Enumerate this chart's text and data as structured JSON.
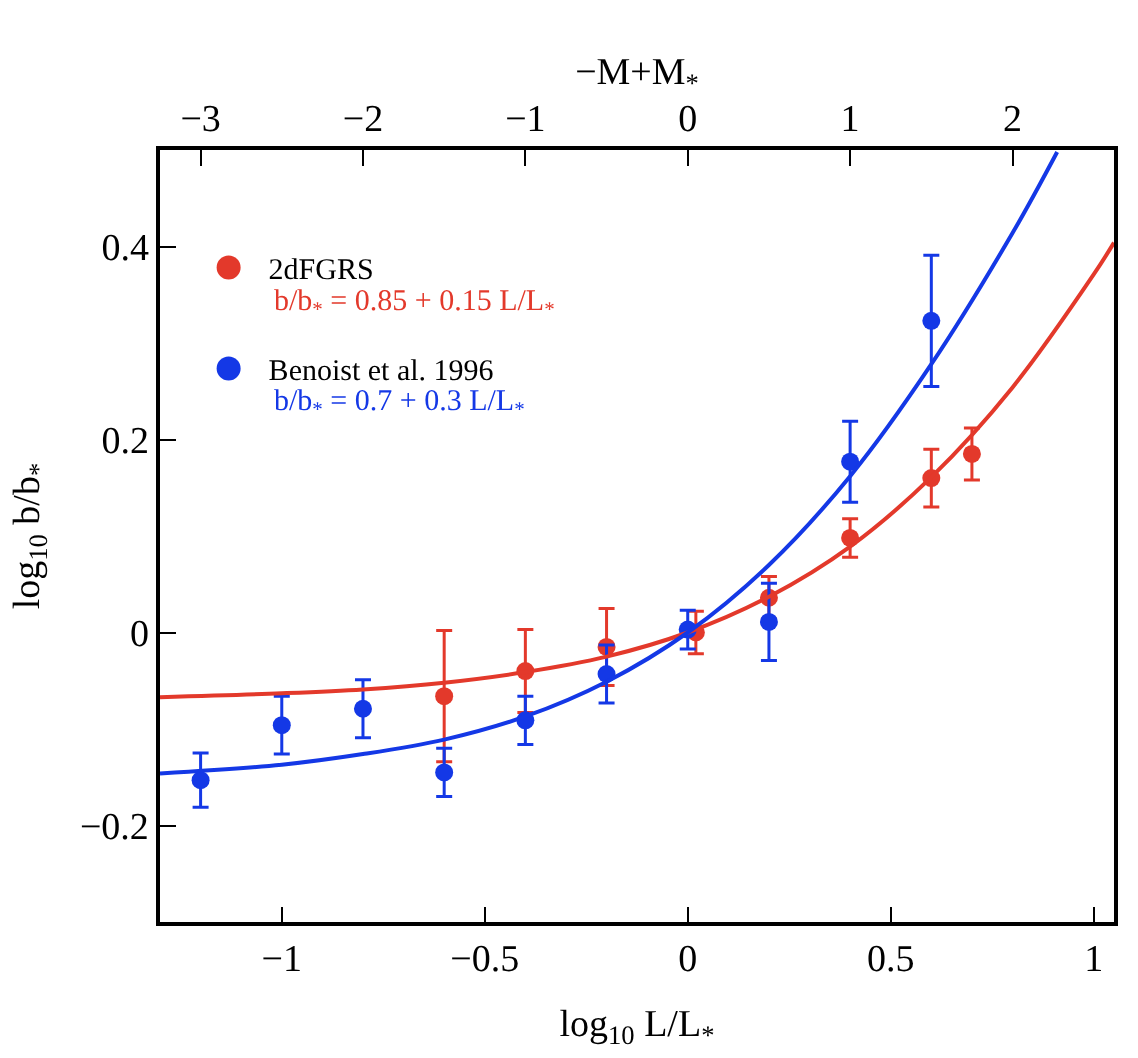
{
  "chart_data": {
    "type": "scatter",
    "xlabel": "log$_{10}$ L/L$_{*}$",
    "ylabel": "log$_{10}$ b/b$_{*}$",
    "x2label": "−M+M$_{*}$",
    "xlim": [
      -1.3,
      1.05
    ],
    "xticks": [
      {
        "value": -1,
        "label": "−1"
      },
      {
        "value": -0.5,
        "label": "−0.5"
      },
      0,
      0.5,
      1
    ],
    "x2lim": [
      -3.25,
      2.625
    ],
    "x2ticks": [
      {
        "value": -3,
        "label": "−3"
      },
      {
        "value": -2,
        "label": "−2"
      },
      {
        "value": -1,
        "label": "−1"
      },
      0,
      1,
      2
    ],
    "ylim": [
      -0.3,
      0.5
    ],
    "yticks": [
      {
        "value": -0.2,
        "label": "−0.2"
      },
      0,
      0.2,
      0.4
    ],
    "legend": "top left",
    "marker": "circle",
    "series": [
      {
        "name": "2dFGRS",
        "color": "#e3392b",
        "x": [
          -0.6,
          -0.4,
          -0.2,
          0.02,
          0.2,
          0.4,
          0.6,
          0.7
        ],
        "values": [
          -0.066,
          -0.04,
          -0.015,
          0.0,
          0.036,
          0.098,
          0.16,
          0.185
        ],
        "errors": [
          0.068,
          0.043,
          0.04,
          0.022,
          0.022,
          0.02,
          0.03,
          0.027
        ]
      },
      {
        "name": "Benoist et al. 1996",
        "color": "#1438e6",
        "x": [
          -1.2,
          -1.0,
          -0.8,
          -0.6,
          -0.4,
          -0.2,
          0,
          0.2,
          0.4,
          0.6
        ],
        "values": [
          -0.153,
          -0.096,
          -0.079,
          -0.145,
          -0.091,
          -0.043,
          0.003,
          0.011,
          0.177,
          0.323
        ],
        "errors": [
          0.028,
          0.03,
          0.03,
          0.025,
          0.025,
          0.03,
          0.02,
          0.04,
          0.042,
          0.068
        ]
      },
      {
        "type": "line",
        "marker": "none",
        "color": "#e3392b",
        "x": [
          -1.3,
          -1.0,
          -0.8,
          -0.6,
          -0.4,
          -0.2,
          0,
          0.2,
          0.4,
          0.6,
          0.8,
          1.0,
          1.05
        ],
        "values": [
          -0.067,
          -0.063,
          -0.059,
          -0.052,
          -0.041,
          -0.025,
          0,
          0.037,
          0.089,
          0.161,
          0.254,
          0.371,
          0.404
        ]
      },
      {
        "type": "line",
        "marker": "none",
        "color": "#1438e6",
        "x": [
          -1.3,
          -1.0,
          -0.8,
          -0.6,
          -0.4,
          -0.2,
          0,
          0.2,
          0.4,
          0.6,
          0.8,
          0.91
        ],
        "values": [
          -0.146,
          -0.137,
          -0.126,
          -0.111,
          -0.087,
          -0.051,
          0,
          0.07,
          0.162,
          0.278,
          0.414,
          0.498
        ]
      }
    ],
    "annotations": [
      "b/b$_{*}$ = 0.85 + 0.15 L/L$_{*}$",
      "b/b$_{*}$ = 0.7 + 0.3 L/L$_{*}$"
    ]
  }
}
